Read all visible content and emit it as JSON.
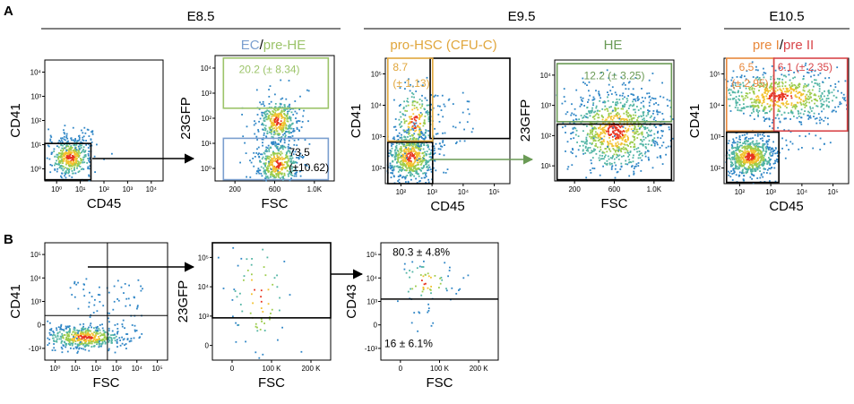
{
  "panel_labels": {
    "A": "A",
    "B": "B"
  },
  "stages": {
    "e85": "E8.5",
    "e95": "E9.5",
    "e105": "E10.5"
  },
  "headers": {
    "ec": "EC",
    "sep": "/",
    "prehe": "pre-HE",
    "prohsc": "pro-HSC (CFU-C)",
    "he": "HE",
    "prei": "pre I",
    "sep2": "/",
    "preii": "pre II"
  },
  "gate_labels": {
    "prehe_pct": "20.2 (± 8.34)",
    "ec_pct_a": "73.5",
    "ec_pct_b": "(±10.62)",
    "prohsc_pct_a": "8.7",
    "prohsc_pct_b": "(± 1.13)",
    "he_pct": "12.2 (± 3.25)",
    "prei_pct_a": "6.5",
    "prei_pct_b": "(± 2.95)",
    "preii_pct": "6.1 (± 2.35)",
    "cd43_high": "80.3 ± 4.8%",
    "cd43_low": "16 ± 6.1%"
  },
  "colors": {
    "ec": "#7b9fcf",
    "prehe": "#9cc46a",
    "prohsc": "#e0a63c",
    "he": "#6a9a55",
    "prei": "#e8883c",
    "preii": "#d8464a",
    "gate": "#000000"
  },
  "chart_data": [
    {
      "type": "scatter",
      "panel": "A1",
      "xlabel": "CD45",
      "ylabel": "CD41",
      "xscale": "log",
      "yscale": "log",
      "xticks": [
        "10⁰",
        "10¹",
        "10²",
        "10³",
        "10⁴"
      ],
      "yticks": [
        "10⁰",
        "10¹",
        "10²",
        "10³",
        "10⁴"
      ]
    },
    {
      "type": "scatter",
      "panel": "A2",
      "xlabel": "FSC",
      "ylabel": "23GFP",
      "xscale": "linear",
      "yscale": "log",
      "xticks": [
        "200",
        "600",
        "1.0K"
      ],
      "yticks": [
        "10⁰",
        "10¹",
        "10²",
        "10³",
        "10⁴"
      ]
    },
    {
      "type": "scatter",
      "panel": "A3",
      "xlabel": "CD45",
      "ylabel": "CD41",
      "xscale": "log",
      "yscale": "log",
      "xticks": [
        "10²",
        "10³",
        "10⁴",
        "10⁵"
      ],
      "yticks": [
        "10²",
        "10³",
        "10⁴",
        "10⁵"
      ]
    },
    {
      "type": "scatter",
      "panel": "A4",
      "xlabel": "FSC",
      "ylabel": "23GFP",
      "xscale": "linear",
      "yscale": "log",
      "xticks": [
        "200",
        "600",
        "1.0K"
      ],
      "yticks": [
        "10¹",
        "10²",
        "10³",
        "10⁴"
      ]
    },
    {
      "type": "scatter",
      "panel": "A5",
      "xlabel": "CD45",
      "ylabel": "CD41",
      "xscale": "log",
      "yscale": "log",
      "xticks": [
        "10²",
        "10³",
        "10⁴",
        "10⁵"
      ],
      "yticks": [
        "10²",
        "10³",
        "10⁴",
        "10⁵"
      ]
    },
    {
      "type": "scatter",
      "panel": "B1",
      "xlabel": "FSC",
      "ylabel": "CD41",
      "xscale": "log",
      "yscale": "biexponential",
      "xticks": [
        "10⁰",
        "10¹",
        "10²",
        "10³",
        "10⁴",
        "10⁵"
      ],
      "yticks": [
        "-10³",
        "0",
        "10³",
        "10⁴",
        "10⁵"
      ]
    },
    {
      "type": "scatter",
      "panel": "B2",
      "xlabel": "FSC",
      "ylabel": "23GFP",
      "xscale": "linear",
      "yscale": "biexponential",
      "xticks": [
        "0",
        "100 K",
        "200 K"
      ],
      "yticks": [
        "0",
        "10³",
        "10⁴",
        "10⁵"
      ]
    },
    {
      "type": "scatter",
      "panel": "B3",
      "xlabel": "FSC",
      "ylabel": "CD43",
      "xscale": "linear",
      "yscale": "biexponential",
      "xticks": [
        "0",
        "100 K",
        "200 K"
      ],
      "yticks": [
        "-10³",
        "0",
        "10³",
        "10⁴",
        "10⁵"
      ]
    }
  ]
}
